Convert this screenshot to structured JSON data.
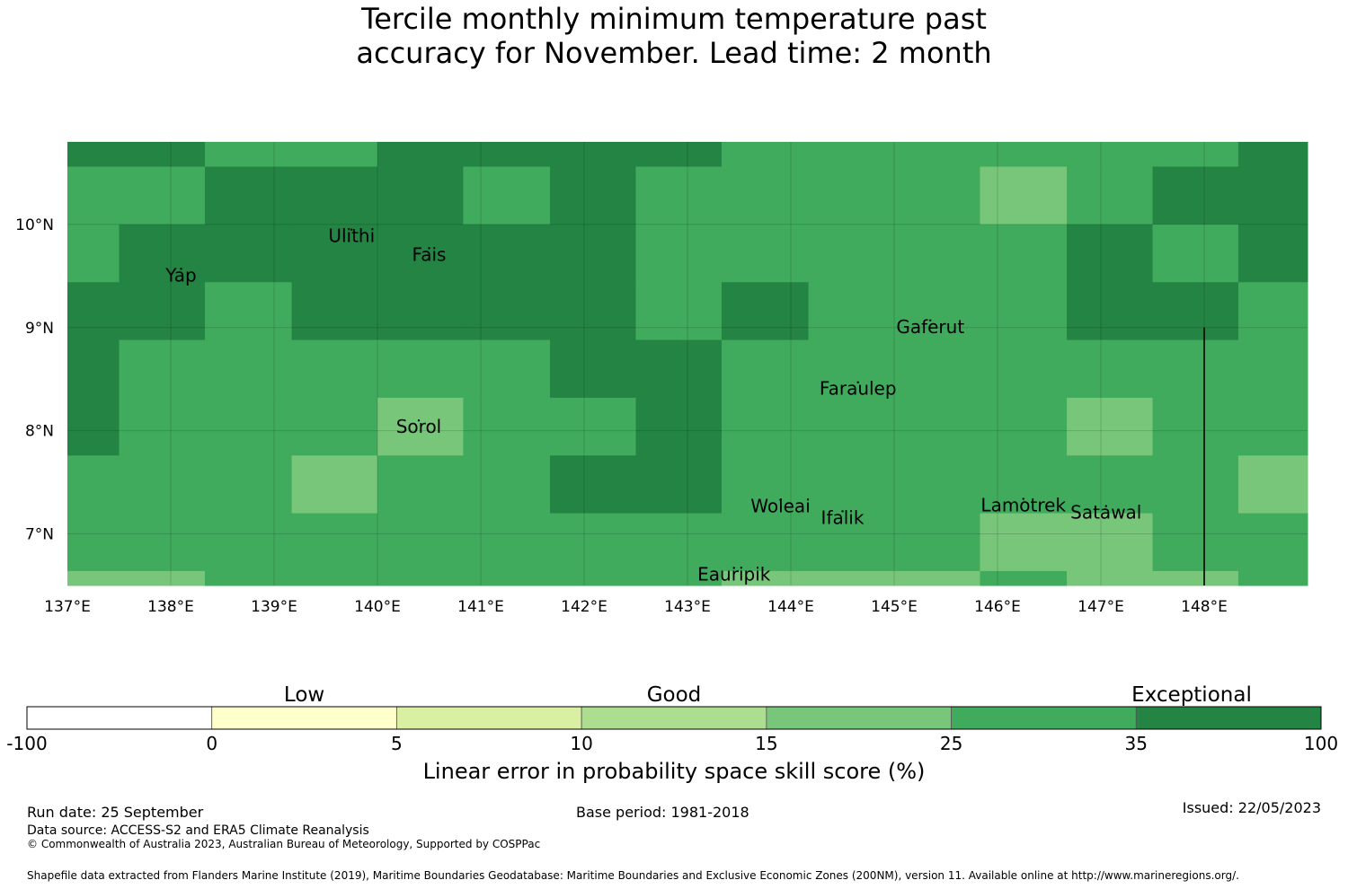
{
  "title": {
    "line1": "Tercile monthly minimum temperature past",
    "line2": "accuracy for November. Lead time: 2 month"
  },
  "map": {
    "lon_range": [
      137.0,
      149.0
    ],
    "lat_range": [
      6.5,
      10.8
    ],
    "x_ticks": [
      {
        "lon": 137,
        "label": "137°E"
      },
      {
        "lon": 138,
        "label": "138°E"
      },
      {
        "lon": 139,
        "label": "139°E"
      },
      {
        "lon": 140,
        "label": "140°E"
      },
      {
        "lon": 141,
        "label": "141°E"
      },
      {
        "lon": 142,
        "label": "142°E"
      },
      {
        "lon": 143,
        "label": "143°E"
      },
      {
        "lon": 144,
        "label": "144°E"
      },
      {
        "lon": 145,
        "label": "145°E"
      },
      {
        "lon": 146,
        "label": "146°E"
      },
      {
        "lon": 147,
        "label": "147°E"
      },
      {
        "lon": 148,
        "label": "148°E"
      }
    ],
    "y_ticks": [
      {
        "lat": 10,
        "label": "10°N"
      },
      {
        "lat": 9,
        "label": "9°N"
      },
      {
        "lat": 8,
        "label": "8°N"
      },
      {
        "lat": 7,
        "label": "7°N"
      }
    ],
    "grid_lon_edges": [
      137.0,
      137.5,
      138.33,
      139.17,
      140.0,
      140.83,
      141.67,
      142.5,
      143.33,
      144.17,
      145.0,
      145.83,
      146.67,
      147.5,
      148.33,
      149.0
    ],
    "grid_lat_edges": [
      10.8,
      10.56,
      10.0,
      9.44,
      8.88,
      8.32,
      7.76,
      7.2,
      6.64,
      6.5
    ],
    "cells": [
      [
        6,
        6,
        5,
        5,
        6,
        6,
        6,
        6,
        5,
        5,
        5,
        5,
        5,
        5,
        6
      ],
      [
        5,
        5,
        6,
        6,
        6,
        5,
        6,
        5,
        5,
        5,
        5,
        4,
        5,
        6,
        6
      ],
      [
        5,
        6,
        6,
        6,
        6,
        6,
        6,
        5,
        5,
        5,
        5,
        5,
        6,
        5,
        6
      ],
      [
        6,
        6,
        5,
        6,
        6,
        6,
        6,
        5,
        6,
        5,
        5,
        5,
        6,
        6,
        5
      ],
      [
        6,
        5,
        5,
        5,
        5,
        5,
        6,
        6,
        5,
        5,
        5,
        5,
        5,
        5,
        5
      ],
      [
        6,
        5,
        5,
        5,
        4,
        5,
        5,
        6,
        5,
        5,
        5,
        5,
        4,
        5,
        5
      ],
      [
        5,
        5,
        5,
        4,
        5,
        5,
        6,
        6,
        5,
        5,
        5,
        5,
        5,
        5,
        4
      ],
      [
        5,
        5,
        5,
        5,
        5,
        5,
        5,
        5,
        5,
        5,
        5,
        4,
        4,
        5,
        5
      ],
      [
        4,
        4,
        5,
        5,
        5,
        5,
        5,
        5,
        4,
        4,
        4,
        5,
        4,
        4,
        5
      ]
    ],
    "boundary_line": {
      "lon": 148.0,
      "lat_top": 9.0
    },
    "places": [
      {
        "name": "Yap",
        "lon": 138.1,
        "lat": 9.5
      },
      {
        "name": "Ulithi",
        "lon": 139.75,
        "lat": 9.88
      },
      {
        "name": "Fais",
        "lon": 140.5,
        "lat": 9.7
      },
      {
        "name": "Gaferut",
        "lon": 145.35,
        "lat": 9.0
      },
      {
        "name": "Faraulep",
        "lon": 144.65,
        "lat": 8.4
      },
      {
        "name": "Sorol",
        "lon": 140.4,
        "lat": 8.03
      },
      {
        "name": "Woleai",
        "lon": 143.9,
        "lat": 7.26
      },
      {
        "name": "Ifalik",
        "lon": 144.5,
        "lat": 7.15
      },
      {
        "name": "Lamotrek",
        "lon": 146.25,
        "lat": 7.27
      },
      {
        "name": "Satawal",
        "lon": 147.05,
        "lat": 7.2
      },
      {
        "name": "Eauripik",
        "lon": 143.45,
        "lat": 6.6
      }
    ]
  },
  "legend": {
    "bins": [
      {
        "from": "-100",
        "to": "0",
        "color": "#ffffff"
      },
      {
        "from": "0",
        "to": "5",
        "color": "#ffffcc"
      },
      {
        "from": "5",
        "to": "10",
        "color": "#d9f0a3"
      },
      {
        "from": "10",
        "to": "15",
        "color": "#addd8e"
      },
      {
        "from": "15",
        "to": "25",
        "color": "#78c679"
      },
      {
        "from": "25",
        "to": "35",
        "color": "#41ab5d"
      },
      {
        "from": "35",
        "to": "100",
        "color": "#238443"
      }
    ],
    "tick_labels": [
      "-100",
      "0",
      "5",
      "10",
      "15",
      "25",
      "35",
      "100"
    ],
    "categories": [
      "Low",
      "Good",
      "Exceptional"
    ],
    "label": "Linear error in probability space skill score (%)"
  },
  "footer": {
    "run_date": "Run date: 25 September",
    "data_source": "Data source: ACCESS-S2 and ERA5 Climate Reanalysis",
    "copyright": "© Commonwealth of Australia 2023, Australian Bureau of Meteorology, Supported by COSPPac",
    "base_period": "Base period: 1981-2018",
    "issued": "Issued: 22/05/2023",
    "shapefile": "Shapefile data extracted from Flanders Marine Institute (2019), Maritime Boundaries Geodatabase: Maritime Boundaries and Exclusive Economic Zones (200NM), version 11. Available online at http://www.marineregions.org/."
  }
}
